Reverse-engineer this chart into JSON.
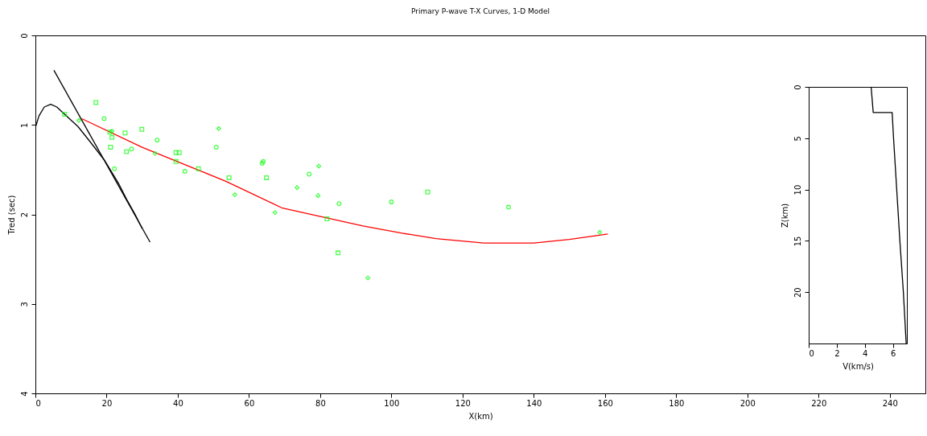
{
  "chart_data": [
    {
      "type": "scatter",
      "title": "Primary P-wave T-X Curves, 1-D Model",
      "xlabel": "X(km)",
      "ylabel": "Tred (sec)",
      "xlim": [
        0,
        250
      ],
      "ylim": [
        4,
        0
      ],
      "xticks": [
        0,
        20,
        40,
        60,
        80,
        100,
        120,
        140,
        160,
        180,
        200,
        220,
        240
      ],
      "yticks": [
        0,
        1,
        2,
        3,
        4
      ],
      "grid": false,
      "legend": false,
      "series": [
        {
          "type": "line",
          "color": "#000000",
          "x": [
            0,
            1,
            2.5,
            4.3,
            6,
            8.2,
            12,
            15.6,
            19.5,
            23.3,
            25.6,
            28,
            30
          ],
          "values": [
            1.03,
            0.9,
            0.8,
            0.77,
            0.8,
            0.88,
            1.02,
            1.2,
            1.4,
            1.65,
            1.83,
            2.0,
            2.16
          ]
        },
        {
          "type": "line",
          "color": "#000000",
          "x": [
            5.2,
            32.2
          ],
          "values": [
            0.39,
            2.31
          ]
        },
        {
          "type": "line",
          "color": "#ff0000",
          "x": [
            13,
            30,
            46.7,
            53.5,
            69.4,
            92,
            103,
            112.5,
            126,
            140,
            150,
            160.8
          ],
          "values": [
            0.93,
            1.25,
            1.52,
            1.63,
            1.93,
            2.13,
            2.21,
            2.27,
            2.32,
            2.32,
            2.28,
            2.22
          ]
        },
        {
          "marker": "square",
          "color": "#00ff00",
          "x": [
            8.2,
            17,
            20.9,
            21.5,
            21.1,
            25.2,
            25.6,
            29.9,
            39.5,
            40.4,
            39.5,
            45.8,
            54.4,
            64.9,
            81.9,
            85,
            110.2
          ],
          "values": [
            0.88,
            0.75,
            1.08,
            1.14,
            1.25,
            1.09,
            1.3,
            1.05,
            1.31,
            1.31,
            1.41,
            1.49,
            1.59,
            1.59,
            2.05,
            2.43,
            1.75
          ]
        },
        {
          "marker": "circle",
          "color": "#00ff00",
          "x": [
            19.3,
            22.2,
            27,
            34.2,
            42,
            50.8,
            64,
            63.7,
            76.9,
            85.3,
            100,
            132.9
          ],
          "values": [
            0.93,
            1.49,
            1.27,
            1.17,
            1.52,
            1.25,
            1.41,
            1.43,
            1.55,
            1.88,
            1.86,
            1.92
          ]
        },
        {
          "marker": "diamond",
          "color": "#00ff00",
          "x": [
            12.2,
            21.5,
            33.6,
            51.5,
            56,
            67.3,
            73.5,
            79.6,
            79.4,
            93.4,
            158.5
          ],
          "values": [
            0.95,
            1.07,
            1.32,
            1.04,
            1.78,
            1.98,
            1.7,
            1.46,
            1.79,
            2.71,
            2.2
          ]
        }
      ]
    },
    {
      "type": "line",
      "xlabel": "V(km/s)",
      "ylabel": "Z(km)",
      "xlim": [
        0,
        7
      ],
      "ylim": [
        25,
        0
      ],
      "xticks": [
        0,
        2,
        4,
        6
      ],
      "yticks": [
        0,
        5,
        10,
        15,
        20
      ],
      "grid": false,
      "legend": false,
      "series": [
        {
          "color": "#000000",
          "x": [
            4.45,
            4.6,
            5.95,
            6.05,
            6.5,
            6.75,
            6.95
          ],
          "values": [
            0,
            2.5,
            2.5,
            5,
            15,
            20,
            25
          ]
        }
      ]
    }
  ]
}
